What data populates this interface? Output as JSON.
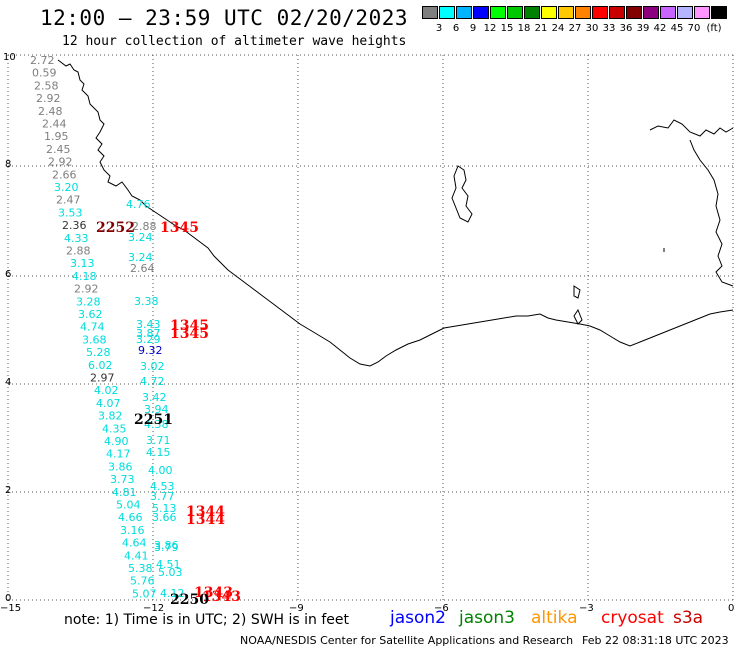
{
  "header": {
    "title": "12:00 – 23:59 UTC 02/20/2023",
    "subtitle": "12 hour collection of altimeter wave heights"
  },
  "scale": {
    "unit": "(ft)",
    "colors": [
      "#7f7f7f",
      "#00ffff",
      "#00b4ff",
      "#0000ff",
      "#00ff00",
      "#00c800",
      "#008200",
      "#ffff00",
      "#ffc800",
      "#ff8200",
      "#ff0000",
      "#c80000",
      "#820000",
      "#8c0080",
      "#c864ff",
      "#b4b4ff",
      "#ff96ff",
      "#000000"
    ],
    "ticks": [
      "3",
      "6",
      "9",
      "12",
      "15",
      "18",
      "21",
      "24",
      "27",
      "30",
      "33",
      "36",
      "39",
      "42",
      "45",
      "70"
    ]
  },
  "axes": {
    "x_ticks": [
      "−15",
      "−12",
      "−9",
      "−6",
      "−3",
      "0"
    ],
    "y_ticks": [
      "0",
      "2",
      "4",
      "6",
      "8",
      "10"
    ]
  },
  "note": "note:  1) Time is in UTC;  2) SWH is in feet",
  "legend": [
    {
      "label": "jason2",
      "color": "#0000ff"
    },
    {
      "label": "jason3",
      "color": "#008200"
    },
    {
      "label": "altika",
      "color": "#ff9600"
    },
    {
      "label": "cryosat",
      "color": "#ff0000"
    },
    {
      "label": "s3a",
      "color": "#c80000"
    }
  ],
  "credit": "NOAA/NESDIS Center for Satellite Applications and Research",
  "generated": "Feb 22 08:31:18 UTC 2023",
  "tracks": {
    "west": [
      {
        "v": "2.72",
        "c": "#7f7f7f"
      },
      {
        "v": "0.59",
        "c": "#7f7f7f"
      },
      {
        "v": "2.58",
        "c": "#7f7f7f"
      },
      {
        "v": "2.92",
        "c": "#7f7f7f"
      },
      {
        "v": "2.48",
        "c": "#7f7f7f"
      },
      {
        "v": "2.44",
        "c": "#7f7f7f"
      },
      {
        "v": "1.95",
        "c": "#7f7f7f"
      },
      {
        "v": "2.45",
        "c": "#7f7f7f"
      },
      {
        "v": "2.92",
        "c": "#7f7f7f"
      },
      {
        "v": "2.66",
        "c": "#7f7f7f"
      },
      {
        "v": "3.20",
        "c": "#00dcdc"
      },
      {
        "v": "2.47",
        "c": "#7f7f7f"
      },
      {
        "v": "3.53",
        "c": "#00dcdc"
      },
      {
        "v": "2.36",
        "c": "#333333"
      },
      {
        "v": "4.33",
        "c": "#00dcdc"
      },
      {
        "v": "2.88",
        "c": "#7f7f7f"
      },
      {
        "v": "3.13",
        "c": "#00dcdc"
      },
      {
        "v": "4.18",
        "c": "#00dcdc"
      },
      {
        "v": "2.92",
        "c": "#7f7f7f"
      },
      {
        "v": "3.28",
        "c": "#00dcdc"
      },
      {
        "v": "3.62",
        "c": "#00dcdc"
      },
      {
        "v": "4.74",
        "c": "#00dcdc"
      },
      {
        "v": "3.68",
        "c": "#00dcdc"
      },
      {
        "v": "5.28",
        "c": "#00dcdc"
      },
      {
        "v": "6.02",
        "c": "#00dcdc"
      },
      {
        "v": "2.97",
        "c": "#333333"
      },
      {
        "v": "4.02",
        "c": "#00dcdc"
      },
      {
        "v": "4.07",
        "c": "#00dcdc"
      },
      {
        "v": "3.82",
        "c": "#00dcdc"
      },
      {
        "v": "4.35",
        "c": "#00dcdc"
      },
      {
        "v": "4.90",
        "c": "#00dcdc"
      },
      {
        "v": "4.17",
        "c": "#00dcdc"
      },
      {
        "v": "3.86",
        "c": "#00dcdc"
      },
      {
        "v": "3.73",
        "c": "#00dcdc"
      },
      {
        "v": "4.81",
        "c": "#00dcdc"
      },
      {
        "v": "5.04",
        "c": "#00dcdc"
      },
      {
        "v": "4.66",
        "c": "#00dcdc"
      },
      {
        "v": "3.16",
        "c": "#00dcdc"
      },
      {
        "v": "4.64",
        "c": "#00dcdc"
      },
      {
        "v": "4.41",
        "c": "#00dcdc"
      },
      {
        "v": "5.38",
        "c": "#00dcdc"
      },
      {
        "v": "5.76",
        "c": "#00dcdc"
      },
      {
        "v": "5.07",
        "c": "#00dcdc"
      }
    ],
    "east": [
      {
        "v": "4.76",
        "c": "#00dcdc"
      },
      {
        "v": "2.88",
        "c": "#7f7f7f"
      },
      {
        "v": "3.24",
        "c": "#00dcdc"
      },
      {
        "v": "3.24",
        "c": "#00dcdc"
      },
      {
        "v": "2.64",
        "c": "#7f7f7f"
      },
      {
        "v": "3.38",
        "c": "#00dcdc"
      },
      {
        "v": "3.43",
        "c": "#00dcdc"
      },
      {
        "v": "3.87",
        "c": "#00dcdc"
      },
      {
        "v": "3.29",
        "c": "#00dcdc"
      },
      {
        "v": "9.32",
        "c": "#0000c8"
      },
      {
        "v": "3.02",
        "c": "#00dcdc"
      },
      {
        "v": "4.72",
        "c": "#00dcdc"
      },
      {
        "v": "3.42",
        "c": "#00dcdc"
      },
      {
        "v": "3.94",
        "c": "#00dcdc"
      },
      {
        "v": "4.38",
        "c": "#00dcdc"
      },
      {
        "v": "3.71",
        "c": "#00dcdc"
      },
      {
        "v": "4.15",
        "c": "#00dcdc"
      },
      {
        "v": "4.00",
        "c": "#00dcdc"
      },
      {
        "v": "4.53",
        "c": "#00dcdc"
      },
      {
        "v": "3.77",
        "c": "#00dcdc"
      },
      {
        "v": "5.13",
        "c": "#00dcdc"
      },
      {
        "v": "3.66",
        "c": "#00dcdc"
      },
      {
        "v": "3.86",
        "c": "#00dcdc"
      },
      {
        "v": "3.79",
        "c": "#00dcdc"
      },
      {
        "v": "4.51",
        "c": "#00dcdc"
      },
      {
        "v": "5.03",
        "c": "#00dcdc"
      },
      {
        "v": "4.12",
        "c": "#00dcdc"
      }
    ],
    "times": [
      {
        "v": "2252",
        "c": "#820000"
      },
      {
        "v": "1345",
        "c": "#ff0000"
      },
      {
        "v": "1345",
        "c": "#ff0000"
      },
      {
        "v": "1345",
        "c": "#ff0000"
      },
      {
        "v": "2251",
        "c": "#000000"
      },
      {
        "v": "1344",
        "c": "#ff0000"
      },
      {
        "v": "1344",
        "c": "#ff0000"
      },
      {
        "v": "1343",
        "c": "#ff0000"
      },
      {
        "v": "1343",
        "c": "#ff0000"
      },
      {
        "v": "2250",
        "c": "#000000"
      }
    ]
  }
}
